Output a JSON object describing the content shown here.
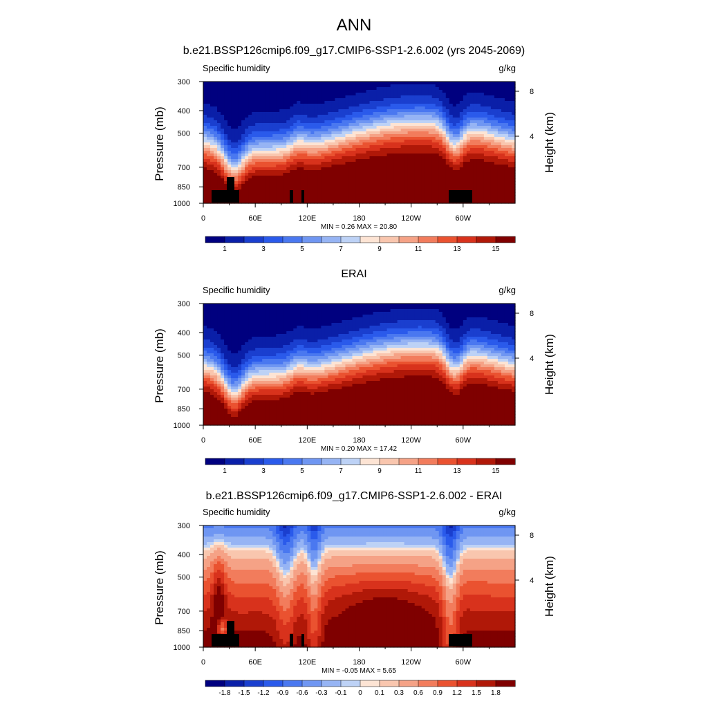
{
  "title": "ANN",
  "pressure_ticks": [
    "300",
    "400",
    "500",
    "700",
    "850",
    "1000"
  ],
  "height_ticks": [
    "8",
    "4"
  ],
  "lon_ticks": [
    "0",
    "60E",
    "120E",
    "180",
    "120W",
    "60W"
  ],
  "ylabel_left": "Pressure (mb)",
  "ylabel_right": "Height (km)",
  "panels": [
    {
      "subtitle": "b.e21.BSSP126cmip6.f09_g17.CMIP6-SSP1-2.6.002 (yrs 2045-2069)",
      "left_label": "Specific humidity",
      "right_label": "g/kg",
      "minmax": "MIN =   0.26  MAX =  20.80",
      "colorbar_ticks": [
        "1",
        "3",
        "5",
        "7",
        "9",
        "11",
        "13",
        "15"
      ]
    },
    {
      "subtitle": "ERAI",
      "left_label": "Specific humidity",
      "right_label": "g/kg",
      "minmax": "MIN =   0.20  MAX =  17.42",
      "colorbar_ticks": [
        "1",
        "3",
        "5",
        "7",
        "9",
        "11",
        "13",
        "15"
      ]
    },
    {
      "subtitle": "b.e21.BSSP126cmip6.f09_g17.CMIP6-SSP1-2.6.002 - ERAI",
      "left_label": "Specific humidity",
      "right_label": "g/kg",
      "minmax": "MIN =  -0.05  MAX =   5.65",
      "colorbar_ticks": [
        "-1.8",
        "-1.5",
        "-1.2",
        "-0.9",
        "-0.6",
        "-0.3",
        "-0.1",
        "0",
        "0.1",
        "0.3",
        "0.6",
        "0.9",
        "1.2",
        "1.5",
        "1.8"
      ]
    }
  ],
  "chart_data": [
    {
      "type": "heatmap",
      "variable": "Specific humidity",
      "units": "g/kg",
      "x_ticks": [
        "0",
        "60E",
        "120E",
        "180",
        "120W",
        "60W"
      ],
      "y_ticks": [
        300,
        400,
        500,
        700,
        850,
        1000
      ],
      "min": 0.26,
      "max": 20.8,
      "levels": [
        1,
        2,
        3,
        4,
        5,
        6,
        7,
        8,
        9,
        10,
        11,
        12,
        13,
        14,
        15
      ],
      "colors": [
        "#00007f",
        "#0a1fa8",
        "#1a3fcf",
        "#2a5aeb",
        "#4a78f0",
        "#6f96f2",
        "#96b4f4",
        "#bdd2f6",
        "#fde4d4",
        "#f9c6ae",
        "#f5a286",
        "#f27c5c",
        "#ea5230",
        "#d8321c",
        "#b01808",
        "#7f0000"
      ]
    },
    {
      "type": "heatmap",
      "variable": "Specific humidity",
      "units": "g/kg",
      "x_ticks": [
        "0",
        "60E",
        "120E",
        "180",
        "120W",
        "60W"
      ],
      "y_ticks": [
        300,
        400,
        500,
        700,
        850,
        1000
      ],
      "min": 0.2,
      "max": 17.42,
      "levels": [
        1,
        2,
        3,
        4,
        5,
        6,
        7,
        8,
        9,
        10,
        11,
        12,
        13,
        14,
        15
      ],
      "colors": [
        "#00007f",
        "#0a1fa8",
        "#1a3fcf",
        "#2a5aeb",
        "#4a78f0",
        "#6f96f2",
        "#96b4f4",
        "#bdd2f6",
        "#fde4d4",
        "#f9c6ae",
        "#f5a286",
        "#f27c5c",
        "#ea5230",
        "#d8321c",
        "#b01808",
        "#7f0000"
      ]
    },
    {
      "type": "heatmap",
      "variable": "Specific humidity",
      "units": "g/kg",
      "x_ticks": [
        "0",
        "60E",
        "120E",
        "180",
        "120W",
        "60W"
      ],
      "y_ticks": [
        300,
        400,
        500,
        700,
        850,
        1000
      ],
      "min": -0.05,
      "max": 5.65,
      "levels": [
        -1.8,
        -1.5,
        -1.2,
        -0.9,
        -0.6,
        -0.3,
        -0.1,
        0,
        0.1,
        0.3,
        0.6,
        0.9,
        1.2,
        1.5,
        1.8
      ],
      "colors": [
        "#00007f",
        "#0a1fa8",
        "#1a3fcf",
        "#2a5aeb",
        "#4a78f0",
        "#6f96f2",
        "#96b4f4",
        "#bdd2f6",
        "#fde4d4",
        "#f9c6ae",
        "#f5a286",
        "#f27c5c",
        "#ea5230",
        "#d8321c",
        "#b01808",
        "#7f0000"
      ]
    }
  ]
}
